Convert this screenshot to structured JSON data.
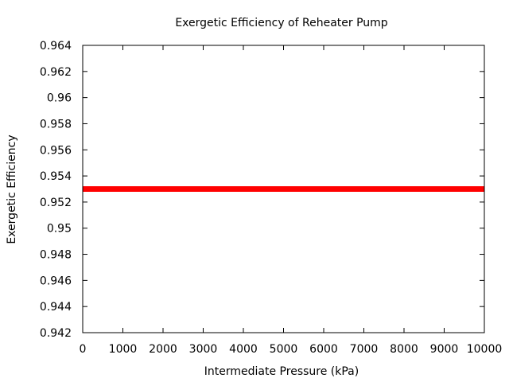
{
  "chart_data": {
    "type": "line",
    "title": "Exergetic Efficiency of Reheater Pump",
    "xlabel": "Intermediate Pressure (kPa)",
    "ylabel": "Exergetic Efficiency",
    "xlim": [
      0,
      10000
    ],
    "ylim": [
      0.942,
      0.964
    ],
    "x_ticks": [
      0,
      1000,
      2000,
      3000,
      4000,
      5000,
      6000,
      7000,
      8000,
      9000,
      10000
    ],
    "x_tick_labels": [
      "0",
      "1000",
      "2000",
      "3000",
      "4000",
      "5000",
      "6000",
      "7000",
      "8000",
      "9000",
      "10000"
    ],
    "y_ticks": [
      0.942,
      0.944,
      0.946,
      0.948,
      0.95,
      0.952,
      0.954,
      0.956,
      0.958,
      0.96,
      0.962,
      0.964
    ],
    "y_tick_labels": [
      "0.942",
      "0.944",
      "0.946",
      "0.948",
      "0.95",
      "0.952",
      "0.954",
      "0.956",
      "0.958",
      "0.96",
      "0.962",
      "0.964"
    ],
    "grid": false,
    "series": [
      {
        "color": "#ff0000",
        "x": [
          0,
          10000
        ],
        "y": [
          0.953,
          0.953
        ]
      }
    ]
  }
}
